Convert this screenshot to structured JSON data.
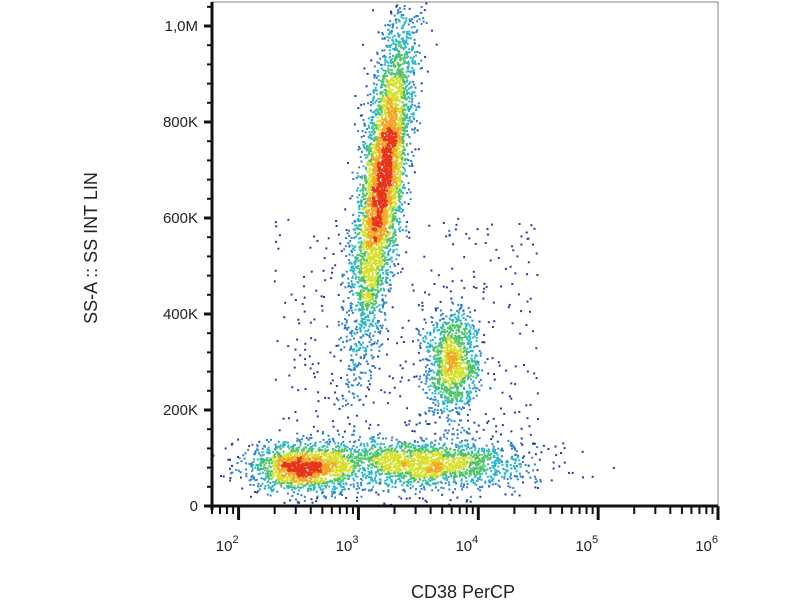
{
  "chart_data": {
    "type": "scatter",
    "title": "",
    "xlabel": "CD38 PerCP",
    "ylabel": "SS-A :: SS INT LIN",
    "x_scale": "log",
    "xlim": [
      60,
      1000000
    ],
    "ylim": [
      0,
      1050000
    ],
    "x_ticks": [
      {
        "value": 100,
        "base": "10",
        "exp": "2"
      },
      {
        "value": 1000,
        "base": "10",
        "exp": "3"
      },
      {
        "value": 10000,
        "base": "10",
        "exp": "4"
      },
      {
        "value": 100000,
        "base": "10",
        "exp": "5"
      },
      {
        "value": 1000000,
        "base": "10",
        "exp": "6"
      }
    ],
    "y_ticks": [
      {
        "value": 0,
        "label": "0"
      },
      {
        "value": 200000,
        "label": "200K"
      },
      {
        "value": 400000,
        "label": "400K"
      },
      {
        "value": 600000,
        "label": "600K"
      },
      {
        "value": 800000,
        "label": "800K"
      },
      {
        "value": 1000000,
        "label": "1,0M"
      }
    ],
    "grid": false,
    "density_colormap": [
      "#2a3b9c",
      "#2f7fd0",
      "#28b6c8",
      "#4cc46a",
      "#d6e02a",
      "#f5a623",
      "#e8341c"
    ],
    "populations": [
      {
        "x_center": 1600,
        "y_center": 680000,
        "x_spread_decades": 0.09,
        "y_spread": 170000,
        "tilt_decades_per_100k": 0.05
      },
      {
        "x_center": 350,
        "y_center": 80000,
        "x_spread_decades": 0.22,
        "y_spread": 25000,
        "tilt_decades_per_100k": 0
      },
      {
        "x_center": 3500,
        "y_center": 90000,
        "x_spread_decades": 0.42,
        "y_spread": 25000,
        "tilt_decades_per_100k": 0
      },
      {
        "x_center": 6000,
        "y_center": 300000,
        "x_spread_decades": 0.11,
        "y_spread": 55000,
        "tilt_decades_per_100k": 0
      }
    ]
  }
}
